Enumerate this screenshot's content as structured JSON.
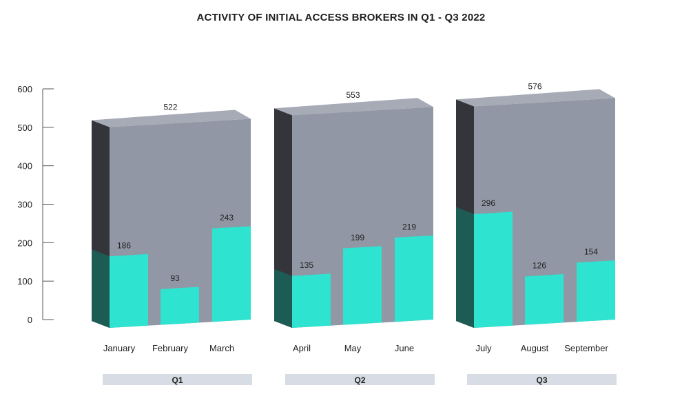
{
  "chart_data": {
    "type": "bar",
    "title": "ACTIVITY OF INITIAL ACCESS BROKERS IN Q1 - Q3 2022",
    "xlabel": "",
    "ylabel": "",
    "ylim": [
      0,
      600
    ],
    "yticks": [
      "0",
      "100",
      "200",
      "300",
      "400",
      "500",
      "600"
    ],
    "grid": false,
    "groups": [
      {
        "label": "Q1",
        "total": 522,
        "total_label": "522",
        "months": [
          {
            "label": "January",
            "value": 186,
            "value_label": "186"
          },
          {
            "label": "February",
            "value": 93,
            "value_label": "93"
          },
          {
            "label": "March",
            "value": 243,
            "value_label": "243"
          }
        ]
      },
      {
        "label": "Q2",
        "total": 553,
        "total_label": "553",
        "months": [
          {
            "label": "April",
            "value": 135,
            "value_label": "135"
          },
          {
            "label": "May",
            "value": 199,
            "value_label": "199"
          },
          {
            "label": "June",
            "value": 219,
            "value_label": "219"
          }
        ]
      },
      {
        "label": "Q3",
        "total": 576,
        "total_label": "576",
        "months": [
          {
            "label": "July",
            "value": 296,
            "value_label": "296"
          },
          {
            "label": "August",
            "value": 126,
            "value_label": "126"
          },
          {
            "label": "September",
            "value": 154,
            "value_label": "154"
          }
        ]
      }
    ],
    "colors": {
      "quarter_front": "#9197a4",
      "quarter_top": "#a6abb6",
      "quarter_side": "#34353a",
      "month_bar": "#2ee3cf",
      "month_side": "#1d5c55",
      "quarter_label_band": "#d8dce4",
      "axis": "#555555",
      "text": "#222222"
    }
  }
}
